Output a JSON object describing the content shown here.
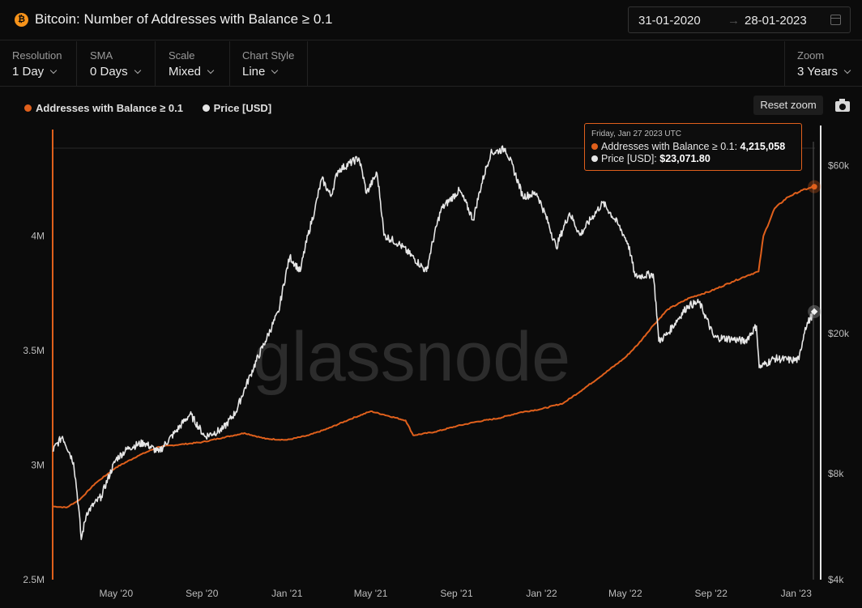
{
  "header": {
    "title": "Bitcoin: Number of Addresses with Balance ≥ 0.1",
    "coin_icon": "bitcoin-icon",
    "date_start": "31-01-2020",
    "date_arrow": "→",
    "date_end": "28-01-2023"
  },
  "controls": {
    "resolution": {
      "label": "Resolution",
      "value": "1 Day"
    },
    "sma": {
      "label": "SMA",
      "value": "0 Days"
    },
    "scale": {
      "label": "Scale",
      "value": "Mixed"
    },
    "chart_style": {
      "label": "Chart Style",
      "value": "Line"
    },
    "zoom": {
      "label": "Zoom",
      "value": "3 Years"
    }
  },
  "toolbar": {
    "reset_zoom": "Reset zoom",
    "camera": "camera-icon"
  },
  "watermark": "glassnode",
  "tooltip": {
    "date": "Friday, Jan 27 2023 UTC",
    "series1_label": "Addresses with Balance ≥ 0.1:",
    "series1_value": "4,215,058",
    "series2_label": "Price [USD]:",
    "series2_value": "$23,071.80"
  },
  "colors": {
    "addresses": "#e0601c",
    "price": "#e6e6e6",
    "background": "#0b0b0b"
  },
  "chart_data": {
    "type": "line",
    "title": "Bitcoin: Number of Addresses with Balance ≥ 0.1",
    "x_range": [
      "2020-01-31",
      "2023-01-28"
    ],
    "x_ticks": [
      "May '20",
      "Sep '20",
      "Jan '21",
      "May '21",
      "Sep '21",
      "Jan '22",
      "May '22",
      "Sep '22",
      "Jan '23"
    ],
    "left_axis": {
      "scale": "linear",
      "range": [
        2500000,
        4500000
      ],
      "ticks": [
        "2.5M",
        "3M",
        "3.5M",
        "4M"
      ]
    },
    "right_axis": {
      "scale": "log",
      "range": [
        4000,
        80000
      ],
      "ticks": [
        "$4k",
        "$8k",
        "$20k",
        "$60k"
      ]
    },
    "legend_position": "top-left",
    "series": [
      {
        "name": "Addresses with Balance ≥ 0.1",
        "axis": "left",
        "color": "#e0601c",
        "points": [
          [
            "2020-01-31",
            2820000
          ],
          [
            "2020-02-20",
            2815000
          ],
          [
            "2020-03-10",
            2850000
          ],
          [
            "2020-04-01",
            2920000
          ],
          [
            "2020-05-01",
            2990000
          ],
          [
            "2020-06-01",
            3040000
          ],
          [
            "2020-07-01",
            3080000
          ],
          [
            "2020-08-01",
            3090000
          ],
          [
            "2020-09-01",
            3100000
          ],
          [
            "2020-10-01",
            3120000
          ],
          [
            "2020-11-01",
            3140000
          ],
          [
            "2020-12-01",
            3115000
          ],
          [
            "2021-01-01",
            3110000
          ],
          [
            "2021-02-01",
            3130000
          ],
          [
            "2021-03-01",
            3160000
          ],
          [
            "2021-04-01",
            3200000
          ],
          [
            "2021-05-01",
            3235000
          ],
          [
            "2021-05-20",
            3220000
          ],
          [
            "2021-06-20",
            3195000
          ],
          [
            "2021-07-01",
            3130000
          ],
          [
            "2021-08-01",
            3145000
          ],
          [
            "2021-09-01",
            3170000
          ],
          [
            "2021-10-01",
            3190000
          ],
          [
            "2021-11-01",
            3205000
          ],
          [
            "2021-12-01",
            3230000
          ],
          [
            "2022-01-01",
            3245000
          ],
          [
            "2022-02-01",
            3270000
          ],
          [
            "2022-03-01",
            3330000
          ],
          [
            "2022-04-01",
            3400000
          ],
          [
            "2022-05-01",
            3470000
          ],
          [
            "2022-05-20",
            3530000
          ],
          [
            "2022-06-10",
            3610000
          ],
          [
            "2022-07-01",
            3680000
          ],
          [
            "2022-08-01",
            3730000
          ],
          [
            "2022-09-01",
            3760000
          ],
          [
            "2022-10-01",
            3800000
          ],
          [
            "2022-10-25",
            3830000
          ],
          [
            "2022-11-08",
            3845000
          ],
          [
            "2022-11-15",
            4000000
          ],
          [
            "2022-12-01",
            4120000
          ],
          [
            "2022-12-20",
            4170000
          ],
          [
            "2023-01-10",
            4200000
          ],
          [
            "2023-01-27",
            4215058
          ]
        ]
      },
      {
        "name": "Price [USD]",
        "axis": "right",
        "color": "#e6e6e6",
        "points": [
          [
            "2020-01-31",
            9300
          ],
          [
            "2020-02-14",
            10200
          ],
          [
            "2020-03-01",
            8600
          ],
          [
            "2020-03-12",
            5200
          ],
          [
            "2020-03-20",
            6200
          ],
          [
            "2020-04-10",
            6900
          ],
          [
            "2020-05-01",
            8800
          ],
          [
            "2020-05-20",
            9500
          ],
          [
            "2020-06-10",
            9800
          ],
          [
            "2020-07-01",
            9200
          ],
          [
            "2020-07-25",
            10500
          ],
          [
            "2020-08-15",
            11800
          ],
          [
            "2020-09-05",
            10200
          ],
          [
            "2020-10-01",
            10700
          ],
          [
            "2020-10-20",
            12000
          ],
          [
            "2020-11-10",
            15300
          ],
          [
            "2020-12-01",
            19000
          ],
          [
            "2020-12-20",
            23000
          ],
          [
            "2021-01-05",
            33000
          ],
          [
            "2021-01-20",
            30000
          ],
          [
            "2021-02-10",
            45000
          ],
          [
            "2021-02-20",
            55000
          ],
          [
            "2021-03-05",
            49000
          ],
          [
            "2021-03-15",
            58000
          ],
          [
            "2021-04-14",
            63000
          ],
          [
            "2021-04-25",
            50000
          ],
          [
            "2021-05-10",
            57000
          ],
          [
            "2021-05-20",
            38000
          ],
          [
            "2021-06-10",
            36000
          ],
          [
            "2021-07-20",
            30000
          ],
          [
            "2021-08-10",
            45000
          ],
          [
            "2021-09-05",
            51000
          ],
          [
            "2021-09-25",
            42000
          ],
          [
            "2021-10-20",
            65000
          ],
          [
            "2021-11-10",
            67000
          ],
          [
            "2021-12-05",
            49000
          ],
          [
            "2021-12-25",
            50000
          ],
          [
            "2022-01-22",
            35000
          ],
          [
            "2022-02-10",
            44000
          ],
          [
            "2022-02-25",
            38000
          ],
          [
            "2022-03-30",
            47000
          ],
          [
            "2022-04-20",
            41000
          ],
          [
            "2022-05-05",
            36000
          ],
          [
            "2022-05-15",
            29000
          ],
          [
            "2022-06-10",
            29500
          ],
          [
            "2022-06-18",
            19000
          ],
          [
            "2022-07-01",
            20000
          ],
          [
            "2022-07-30",
            24000
          ],
          [
            "2022-08-15",
            24500
          ],
          [
            "2022-09-05",
            19500
          ],
          [
            "2022-10-01",
            19300
          ],
          [
            "2022-10-20",
            19000
          ],
          [
            "2022-11-05",
            21000
          ],
          [
            "2022-11-09",
            16000
          ],
          [
            "2022-12-01",
            17000
          ],
          [
            "2022-12-25",
            16800
          ],
          [
            "2023-01-05",
            16850
          ],
          [
            "2023-01-14",
            20800
          ],
          [
            "2023-01-27",
            23071.8
          ]
        ]
      }
    ]
  }
}
